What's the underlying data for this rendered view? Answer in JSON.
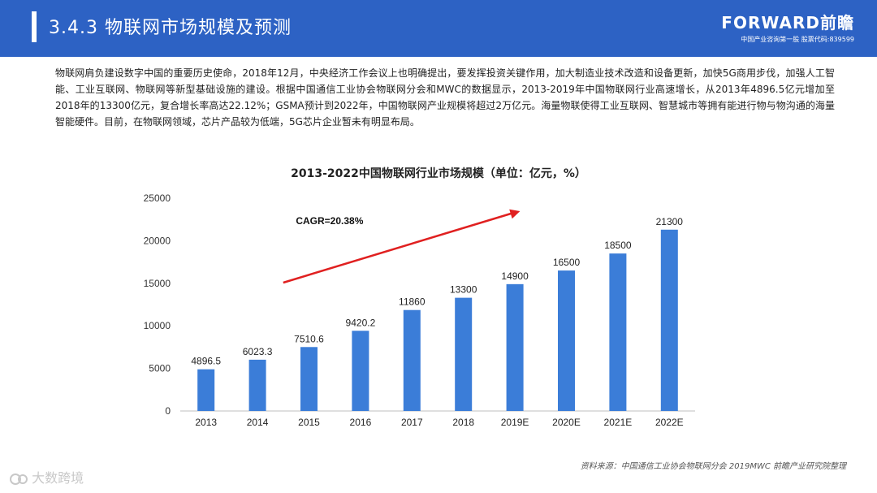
{
  "header": {
    "title": "3.4.3 物联网市场规模及预测",
    "brand_name": "FORWARD前瞻",
    "brand_sub": "中国产业咨询第一股 股票代码:839599"
  },
  "intro_text": "物联网肩负建设数字中国的重要历史使命，2018年12月，中央经济工作会议上也明确提出，要发挥投资关键作用，加大制造业技术改造和设备更新，加快5G商用步伐，加强人工智能、工业互联网、物联网等新型基础设施的建设。根据中国通信工业协会物联网分会和MWC的数据显示，2013-2019年中国物联网行业高速增长，从2013年4896.5亿元增加至2018年的13300亿元，复合增长率高达22.12%；GSMA预计到2022年，中国物联网产业规模将超过2万亿元。海量物联使得工业互联网、智慧城市等拥有能进行物与物沟通的海量智能硬件。目前，在物联网领域，芯片产品较为低端，5G芯片企业暂未有明显布局。",
  "source": "资料来源：中国通信工业协会物联网分会 2019MWC 前瞻产业研究院整理",
  "footer_logo": "大数跨境",
  "chart_data": {
    "type": "bar",
    "title": "2013-2022中国物联网行业市场规模（单位：亿元，%）",
    "categories": [
      "2013",
      "2014",
      "2015",
      "2016",
      "2017",
      "2018",
      "2019E",
      "2020E",
      "2021E",
      "2022E"
    ],
    "values": [
      4896.5,
      6023.3,
      7510.6,
      9420.2,
      11860,
      13300,
      14900,
      16500,
      18500,
      21300
    ],
    "value_labels": [
      "4896.5",
      "6023.3",
      "7510.6",
      "9420.2",
      "11860",
      "13300",
      "14900",
      "16500",
      "18500",
      "21300"
    ],
    "ylim": [
      0,
      25000
    ],
    "yticks": [
      0,
      5000,
      10000,
      15000,
      20000,
      25000
    ],
    "annotation": "CAGR=20.38%",
    "bar_color": "#3b7dd8",
    "arrow_color": "#e02020",
    "grid": false
  }
}
